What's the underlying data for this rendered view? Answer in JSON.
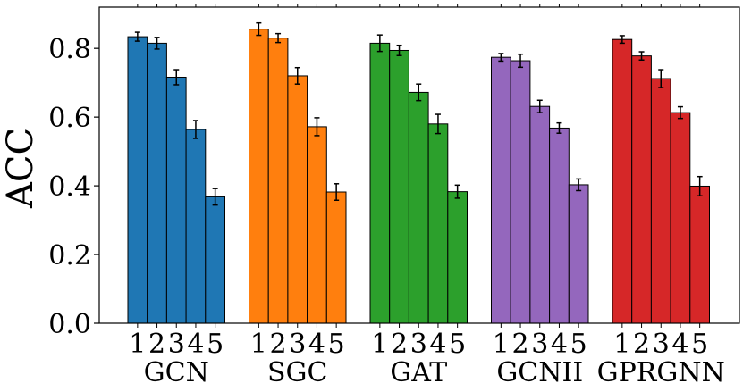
{
  "chart_data": {
    "type": "bar",
    "title": "",
    "xlabel": "",
    "ylabel": "ACC",
    "ylim": [
      0,
      0.92
    ],
    "yticks": [
      "0.0",
      "0.2",
      "0.4",
      "0.6",
      "0.8"
    ],
    "bar_labels": [
      "1",
      "2",
      "3",
      "4",
      "5"
    ],
    "grid": false,
    "groups": [
      {
        "name": "GCN",
        "color": "#1f77b4",
        "values": [
          0.834,
          0.815,
          0.716,
          0.564,
          0.368
        ],
        "errors": [
          0.013,
          0.017,
          0.022,
          0.026,
          0.024
        ]
      },
      {
        "name": "SGC",
        "color": "#ff7f0e",
        "values": [
          0.856,
          0.83,
          0.72,
          0.572,
          0.382
        ],
        "errors": [
          0.018,
          0.013,
          0.024,
          0.026,
          0.024
        ]
      },
      {
        "name": "GAT",
        "color": "#2ca02c",
        "values": [
          0.815,
          0.794,
          0.672,
          0.58,
          0.383
        ],
        "errors": [
          0.024,
          0.015,
          0.024,
          0.028,
          0.019
        ]
      },
      {
        "name": "GCNII",
        "color": "#9467bd",
        "values": [
          0.774,
          0.764,
          0.631,
          0.568,
          0.403
        ],
        "errors": [
          0.011,
          0.019,
          0.018,
          0.015,
          0.017
        ]
      },
      {
        "name": "GPRGNN",
        "color": "#d62728",
        "values": [
          0.826,
          0.778,
          0.712,
          0.613,
          0.399
        ],
        "errors": [
          0.011,
          0.012,
          0.026,
          0.017,
          0.028
        ]
      }
    ]
  }
}
